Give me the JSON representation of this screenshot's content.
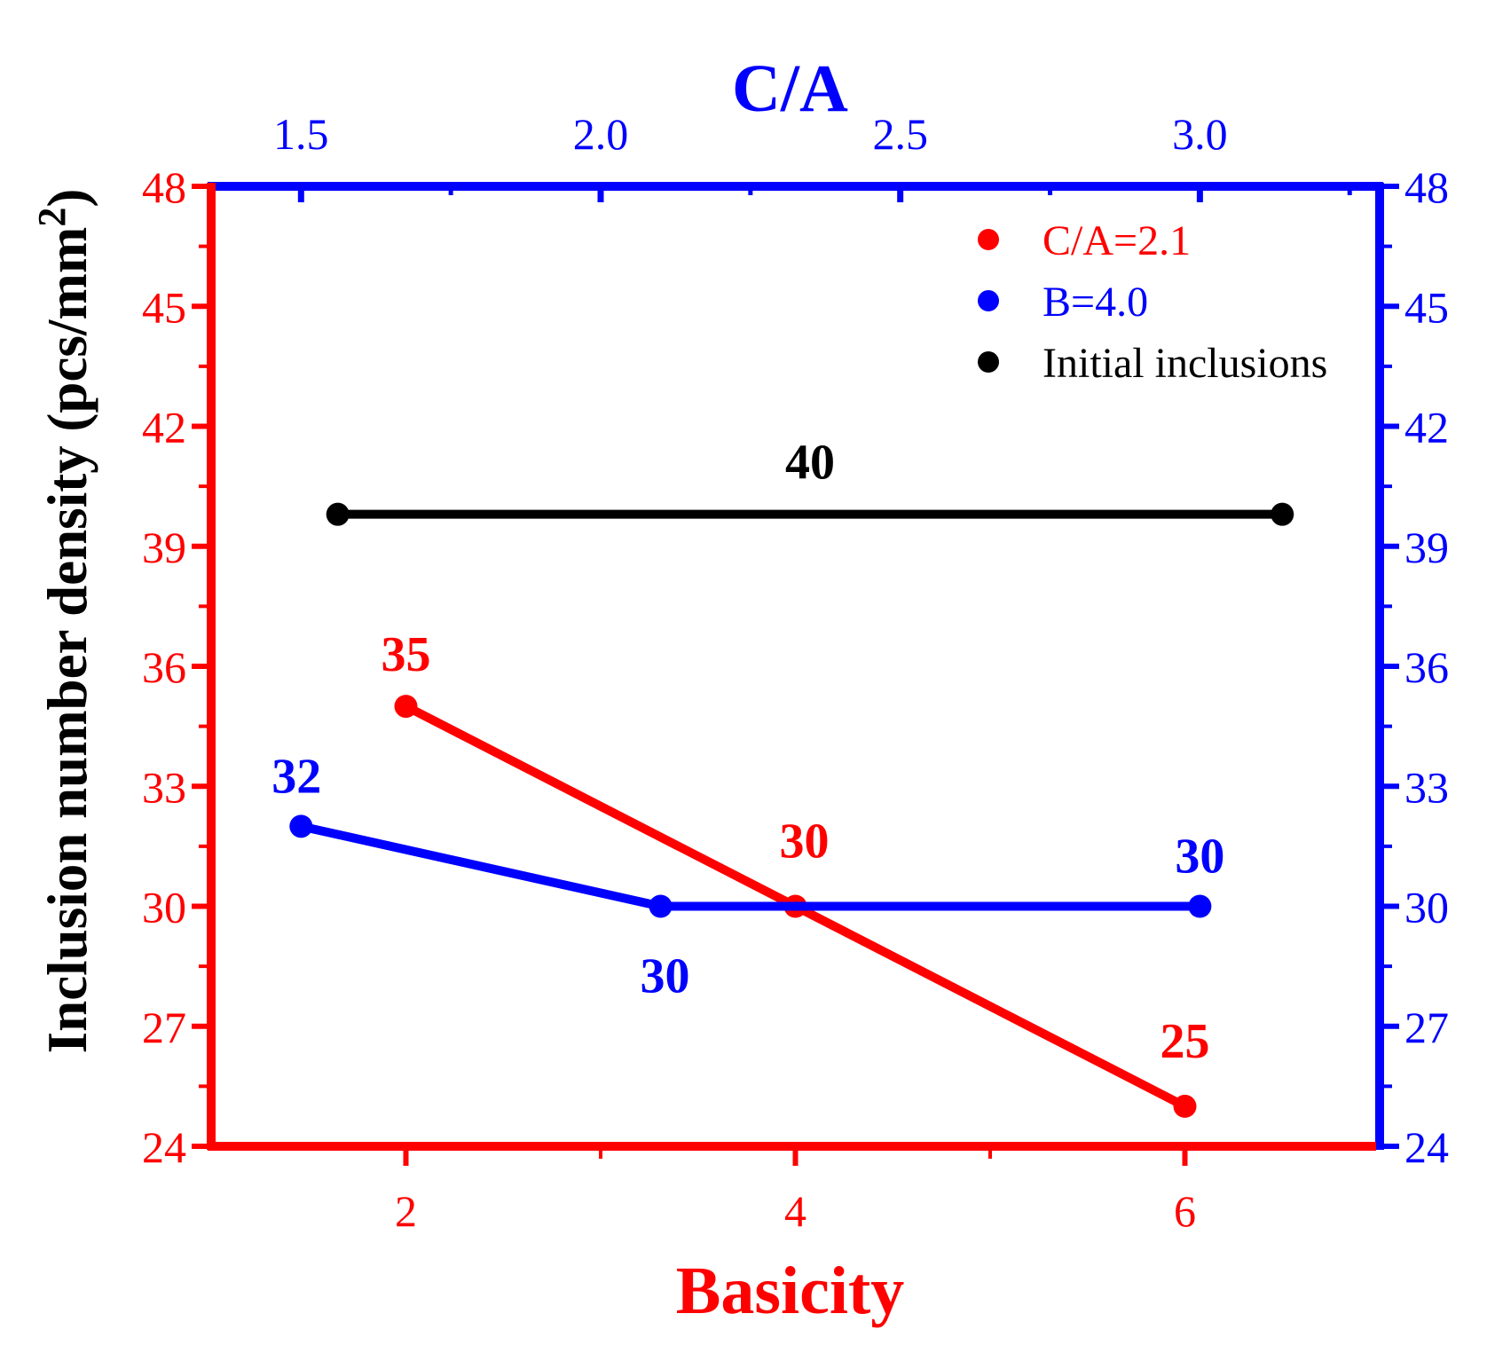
{
  "chart_data": {
    "type": "line",
    "colors": {
      "red": "#ff0000",
      "blue": "#0000ff",
      "black": "#000000"
    },
    "ylabel": "Inclusion number density (pcs/mm",
    "ylabel_sup": "2",
    "ylabel_close": ")",
    "xlabel_bottom": "Basicity",
    "xlabel_top": "C/A",
    "y_axis": {
      "min": 24,
      "max": 48,
      "ticks": [
        24,
        27,
        30,
        33,
        36,
        39,
        42,
        45,
        48
      ],
      "minor_step": 1.5
    },
    "x_bottom_axis": {
      "min": 1,
      "max": 7,
      "ticks": [
        2,
        4,
        6
      ],
      "minor_step": 1
    },
    "x_top_axis": {
      "min": 1.35,
      "max": 3.3,
      "ticks": [
        "1.5",
        "2.0",
        "2.5",
        "3.0"
      ],
      "minor_step": 0.25
    },
    "series": [
      {
        "name": "C/A=2.1",
        "axis": "bottom",
        "color": "#ff0000",
        "points": [
          {
            "x": 2,
            "y": 35
          },
          {
            "x": 4,
            "y": 30
          },
          {
            "x": 6,
            "y": 25
          }
        ],
        "labels": [
          "35",
          "30",
          "25"
        ]
      },
      {
        "name": "B=4.0",
        "axis": "top",
        "color": "#0000ff",
        "points": [
          {
            "x": 1.5,
            "y": 32
          },
          {
            "x": 2.1,
            "y": 30
          },
          {
            "x": 3.0,
            "y": 30
          }
        ],
        "labels": [
          "32",
          "30",
          "30"
        ]
      },
      {
        "name": "Initial inclusions",
        "axis": "bottom",
        "color": "#000000",
        "points": [
          {
            "x": 1.65,
            "y": 39.8
          },
          {
            "x": 6.5,
            "y": 39.8
          }
        ],
        "labels": [
          "40"
        ]
      }
    ],
    "legend": {
      "position": "top-right",
      "entries": [
        "C/A=2.1",
        "B=4.0",
        "Initial inclusions"
      ]
    }
  }
}
